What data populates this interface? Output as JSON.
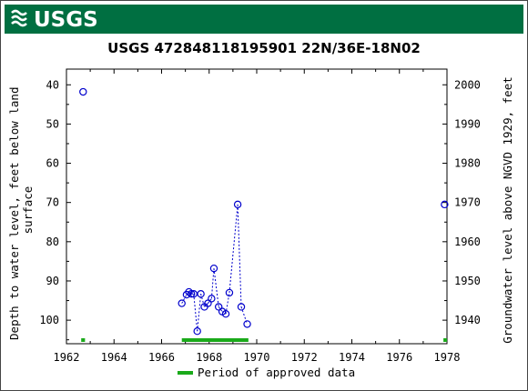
{
  "header": {
    "logo_text": "USGS",
    "banner_color": "#006f41"
  },
  "chart_data": {
    "type": "scatter",
    "title": "USGS 472848118195901 22N/36E-18N02",
    "ylabel_left": "Depth to water level, feet below land surface",
    "ylabel_left_lines": [
      "Depth to water level, feet below land",
      "surface"
    ],
    "ylabel_right": "Groundwater level above NGVD 1929, feet",
    "x_ticks": [
      "1962",
      "1964",
      "1966",
      "1968",
      "1970",
      "1972",
      "1974",
      "1976",
      "1978"
    ],
    "xlim": [
      1962,
      1978
    ],
    "y_left_ticks": [
      "40",
      "50",
      "60",
      "70",
      "80",
      "90",
      "100"
    ],
    "y_left_lim": [
      36,
      106
    ],
    "y_left_inverted": true,
    "y_right_ticks": [
      "2000",
      "1990",
      "1980",
      "1970",
      "1960",
      "1950",
      "1940"
    ],
    "y_right_ticks_values": [
      2000,
      1990,
      1980,
      1970,
      1960,
      1950,
      1940
    ],
    "series": [
      {
        "marker": "open-circle",
        "color": "#0000cc",
        "points": [
          {
            "x": 1962.7,
            "y": 41.8,
            "connect": false
          },
          {
            "x": 1966.85,
            "y": 95.7,
            "connect": true
          },
          {
            "x": 1967.05,
            "y": 93.5,
            "connect": true
          },
          {
            "x": 1967.15,
            "y": 92.8,
            "connect": true
          },
          {
            "x": 1967.25,
            "y": 93.3,
            "connect": true
          },
          {
            "x": 1967.35,
            "y": 93.3,
            "connect": true
          },
          {
            "x": 1967.5,
            "y": 102.8,
            "connect": true
          },
          {
            "x": 1967.65,
            "y": 93.3,
            "connect": true
          },
          {
            "x": 1967.8,
            "y": 96.6,
            "connect": true
          },
          {
            "x": 1967.95,
            "y": 95.7,
            "connect": true
          },
          {
            "x": 1968.1,
            "y": 94.5,
            "connect": true
          },
          {
            "x": 1968.2,
            "y": 86.8,
            "connect": true
          },
          {
            "x": 1968.4,
            "y": 96.6,
            "connect": true
          },
          {
            "x": 1968.55,
            "y": 97.8,
            "connect": true
          },
          {
            "x": 1968.7,
            "y": 98.4,
            "connect": true
          },
          {
            "x": 1968.85,
            "y": 93.0,
            "connect": true
          },
          {
            "x": 1969.2,
            "y": 70.5,
            "connect": true
          },
          {
            "x": 1969.35,
            "y": 96.6,
            "connect": true
          },
          {
            "x": 1969.6,
            "y": 101.0,
            "connect": true
          },
          {
            "x": 1977.9,
            "y": 70.5,
            "connect": false
          }
        ]
      }
    ],
    "approved_periods": [
      {
        "start": 1962.62,
        "end": 1962.78
      },
      {
        "start": 1966.85,
        "end": 1969.65
      },
      {
        "start": 1977.85,
        "end": 1978.0
      }
    ],
    "approved_color": "#1aaa1a",
    "legend": {
      "label": "Period of approved data",
      "placement": "bottom-center"
    },
    "grid": false
  }
}
